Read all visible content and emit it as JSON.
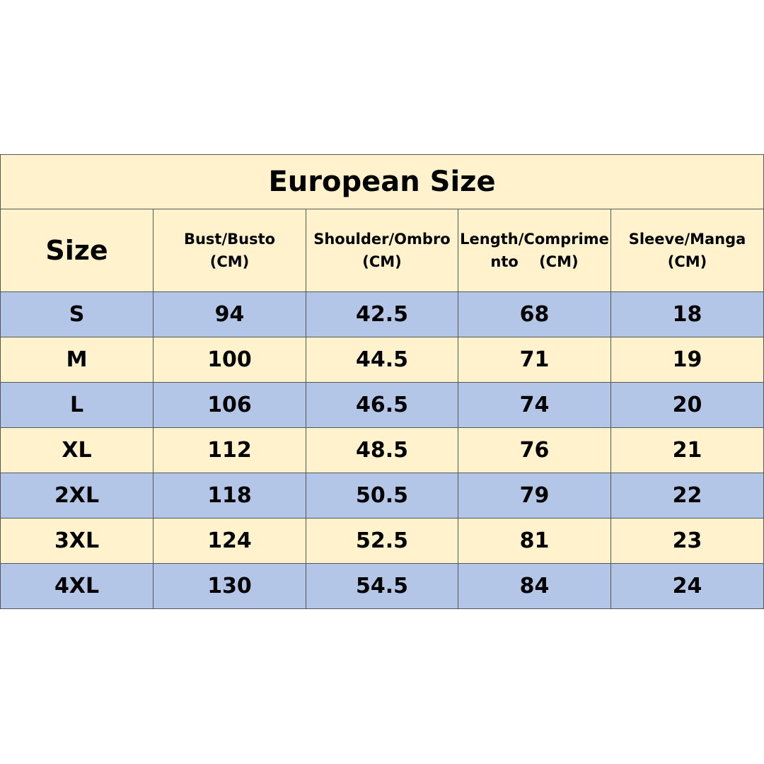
{
  "table": {
    "title": "European Size",
    "header": {
      "size": "Size",
      "columns": [
        [
          "Bust/Busto",
          "(CM)"
        ],
        [
          "Shoulder/Ombro",
          "(CM)"
        ],
        [
          "Length/Comprime",
          "nto    (CM)"
        ],
        [
          "Sleeve/Manga",
          "(CM)"
        ]
      ]
    },
    "rows": [
      [
        "S",
        94,
        42.5,
        68,
        18
      ],
      [
        "M",
        100,
        44.5,
        71,
        19
      ],
      [
        "L",
        106,
        46.5,
        74,
        20
      ],
      [
        "XL",
        112,
        48.5,
        76,
        21
      ],
      [
        "2XL",
        118,
        50.5,
        79,
        22
      ],
      [
        "3XL",
        124,
        52.5,
        81,
        23
      ],
      [
        "4XL",
        130,
        54.5,
        84,
        24
      ]
    ]
  }
}
